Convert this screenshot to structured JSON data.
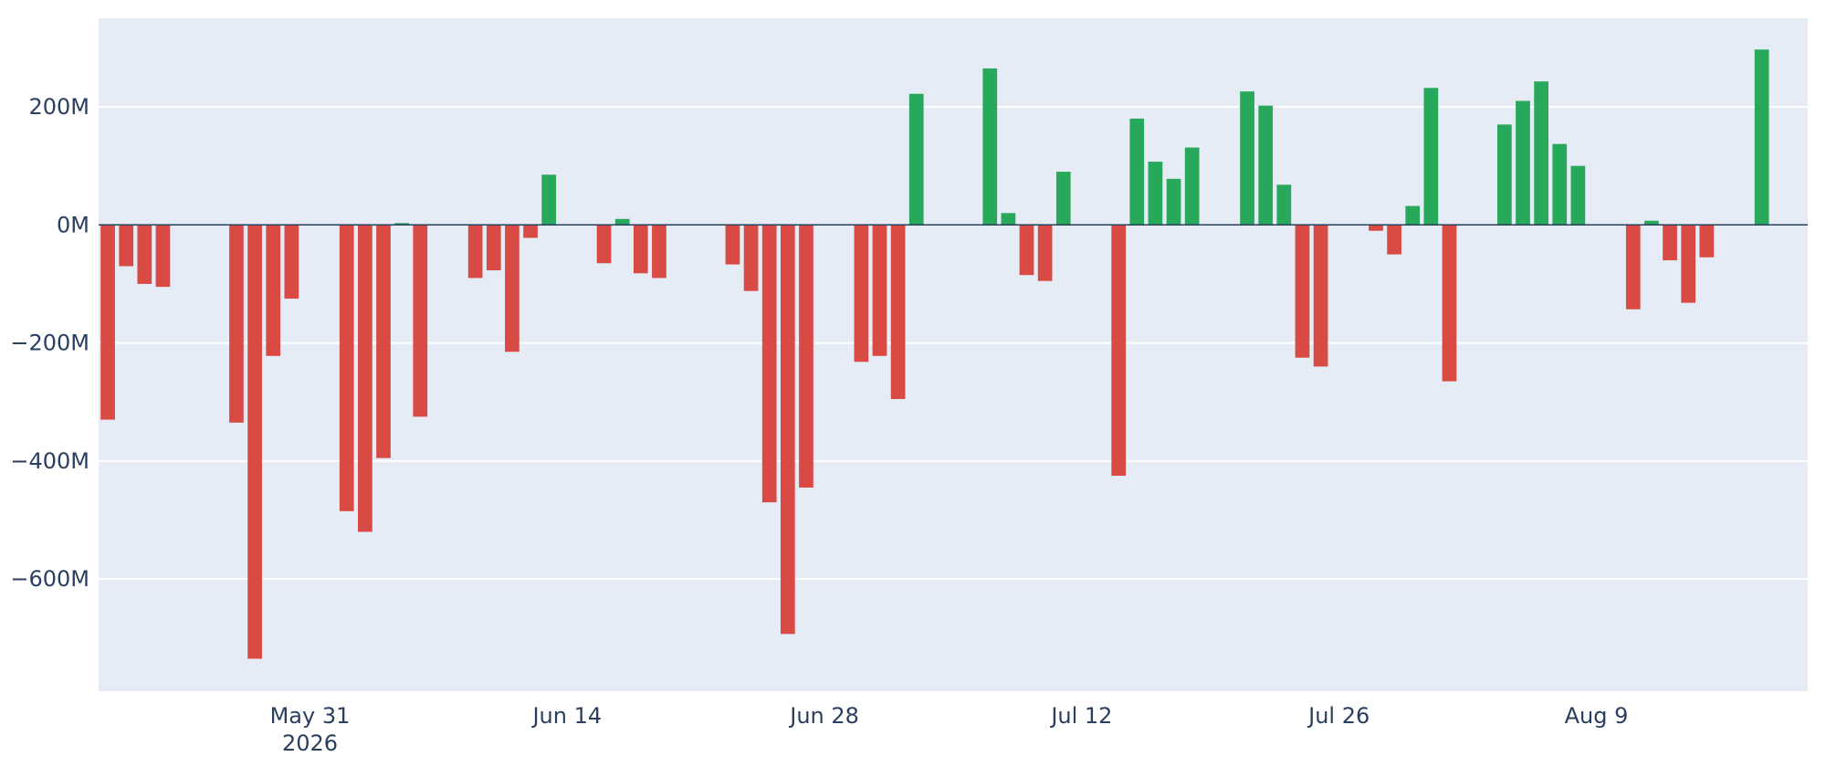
{
  "chart_data": {
    "type": "bar",
    "x_type": "date",
    "title": "",
    "xlabel": "",
    "ylabel": "",
    "ylim": [
      -790,
      350
    ],
    "xlim": [
      "2026-05-20",
      "2026-08-20"
    ],
    "grid": true,
    "legend": "none",
    "y_ticks": [
      {
        "value": 200,
        "label": "200M"
      },
      {
        "value": 0,
        "label": "0M"
      },
      {
        "value": -200,
        "label": "−200M"
      },
      {
        "value": -400,
        "label": "−400M"
      },
      {
        "value": -600,
        "label": "−600M"
      }
    ],
    "x_ticks": [
      {
        "date": "2026-05-31",
        "label": "May 31",
        "sublabel": "2026"
      },
      {
        "date": "2026-06-14",
        "label": "Jun 14",
        "sublabel": ""
      },
      {
        "date": "2026-06-28",
        "label": "Jun 28",
        "sublabel": ""
      },
      {
        "date": "2026-07-12",
        "label": "Jul 12",
        "sublabel": ""
      },
      {
        "date": "2026-07-26",
        "label": "Jul 26",
        "sublabel": ""
      },
      {
        "date": "2026-08-09",
        "label": "Aug 9",
        "sublabel": ""
      }
    ],
    "colors": {
      "positive": "#27a85a",
      "negative": "#d94a45",
      "plot_bg": "#e5ecf6",
      "grid": "#ffffff",
      "zero_line": "#2a3f5f",
      "text": "#2a3f5f"
    },
    "x": [
      "2026-05-20",
      "2026-05-21",
      "2026-05-22",
      "2026-05-23",
      "2026-05-27",
      "2026-05-28",
      "2026-05-29",
      "2026-05-30",
      "2026-06-02",
      "2026-06-03",
      "2026-06-04",
      "2026-06-05",
      "2026-06-06",
      "2026-06-09",
      "2026-06-10",
      "2026-06-11",
      "2026-06-12",
      "2026-06-13",
      "2026-06-16",
      "2026-06-17",
      "2026-06-18",
      "2026-06-19",
      "2026-06-23",
      "2026-06-24",
      "2026-06-25",
      "2026-06-26",
      "2026-06-27",
      "2026-06-30",
      "2026-07-01",
      "2026-07-02",
      "2026-07-03",
      "2026-07-07",
      "2026-07-08",
      "2026-07-09",
      "2026-07-10",
      "2026-07-11",
      "2026-07-14",
      "2026-07-15",
      "2026-07-16",
      "2026-07-17",
      "2026-07-18",
      "2026-07-21",
      "2026-07-22",
      "2026-07-23",
      "2026-07-24",
      "2026-07-25",
      "2026-07-28",
      "2026-07-29",
      "2026-07-30",
      "2026-07-31",
      "2026-08-01",
      "2026-08-04",
      "2026-08-05",
      "2026-08-06",
      "2026-08-07",
      "2026-08-08",
      "2026-08-11",
      "2026-08-12",
      "2026-08-13",
      "2026-08-14",
      "2026-08-15",
      "2026-08-18"
    ],
    "values": [
      -330,
      -70,
      -100,
      -105,
      -335,
      -735,
      -222,
      -125,
      -485,
      -520,
      -395,
      3,
      -325,
      -90,
      -77,
      -215,
      -22,
      85,
      -65,
      10,
      -82,
      -90,
      -67,
      -112,
      -470,
      -693,
      -445,
      -232,
      -222,
      -295,
      222,
      265,
      20,
      -85,
      -95,
      90,
      -425,
      180,
      107,
      78,
      131,
      226,
      202,
      68,
      -225,
      -240,
      -10,
      -50,
      32,
      232,
      -265,
      170,
      210,
      243,
      137,
      100,
      -143,
      7,
      -60,
      -132,
      -55,
      297
    ]
  }
}
